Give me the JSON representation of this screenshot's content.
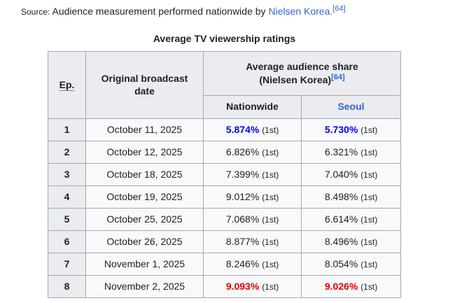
{
  "source_line": {
    "label": "Source:",
    "text": " Audience measurement performed nationwide by ",
    "link": "Nielsen Korea.",
    "ref": "[64]"
  },
  "table": {
    "caption": "Average TV viewership ratings",
    "headers": {
      "ep": "Ep.",
      "date": "Original broadcast date",
      "share_group_line1": "Average audience share",
      "share_group_line2": "(Nielsen Korea)",
      "share_group_ref": "[64]",
      "nationwide": "Nationwide",
      "seoul": "Seoul"
    },
    "rows": [
      {
        "ep": "1",
        "date": "October 11, 2025",
        "nationwide": {
          "value": "5.874%",
          "suffix": "(1st)",
          "emphasis": "lowest"
        },
        "seoul": {
          "value": "5.730%",
          "suffix": "(1st)",
          "emphasis": "lowest"
        }
      },
      {
        "ep": "2",
        "date": "October 12, 2025",
        "nationwide": {
          "value": "6.826%",
          "suffix": "(1st)",
          "emphasis": ""
        },
        "seoul": {
          "value": "6.321%",
          "suffix": "(1st)",
          "emphasis": ""
        }
      },
      {
        "ep": "3",
        "date": "October 18, 2025",
        "nationwide": {
          "value": "7.399%",
          "suffix": "(1st)",
          "emphasis": ""
        },
        "seoul": {
          "value": "7.040%",
          "suffix": "(1st)",
          "emphasis": ""
        }
      },
      {
        "ep": "4",
        "date": "October 19, 2025",
        "nationwide": {
          "value": "9.012%",
          "suffix": "(1st)",
          "emphasis": ""
        },
        "seoul": {
          "value": "8.498%",
          "suffix": "(1st)",
          "emphasis": ""
        }
      },
      {
        "ep": "5",
        "date": "October 25, 2025",
        "nationwide": {
          "value": "7.068%",
          "suffix": "(1st)",
          "emphasis": ""
        },
        "seoul": {
          "value": "6.614%",
          "suffix": "(1st)",
          "emphasis": ""
        }
      },
      {
        "ep": "6",
        "date": "October 26, 2025",
        "nationwide": {
          "value": "8.877%",
          "suffix": "(1st)",
          "emphasis": ""
        },
        "seoul": {
          "value": "8.496%",
          "suffix": "(1st)",
          "emphasis": ""
        }
      },
      {
        "ep": "7",
        "date": "November 1, 2025",
        "nationwide": {
          "value": "8.246%",
          "suffix": "(1st)",
          "emphasis": ""
        },
        "seoul": {
          "value": "8.054%",
          "suffix": "(1st)",
          "emphasis": ""
        }
      },
      {
        "ep": "8",
        "date": "November 2, 2025",
        "nationwide": {
          "value": "9.093%",
          "suffix": "(1st)",
          "emphasis": "highest"
        },
        "seoul": {
          "value": "9.026%",
          "suffix": "(1st)",
          "emphasis": "highest"
        }
      }
    ]
  },
  "colors": {
    "link_blue": "#3366cc",
    "lowest_blue": "#0000ee",
    "highest_red": "#e60000",
    "header_bg": "#eaecf0",
    "cell_bg": "#f8f9fa",
    "border": "#a2a9b1",
    "text": "#202122"
  }
}
